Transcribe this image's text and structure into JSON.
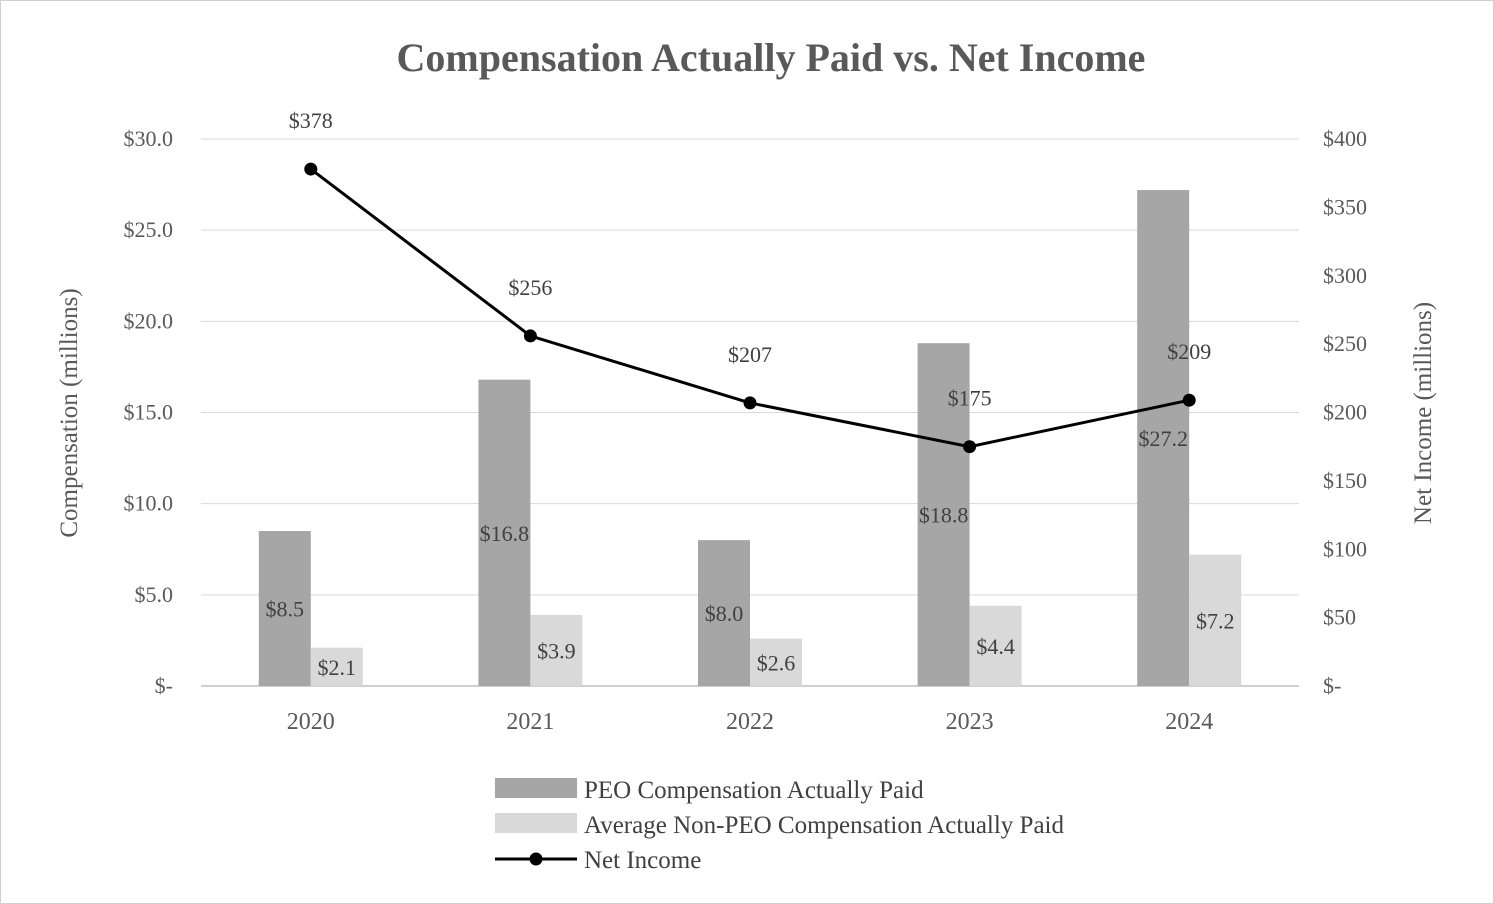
{
  "chart_data": {
    "type": "bar+line",
    "title": "Compensation Actually Paid vs. Net Income",
    "categories": [
      "2020",
      "2021",
      "2022",
      "2023",
      "2024"
    ],
    "ylabel_left": "Compensation (millions)",
    "ylabel_right": "Net Income (millions)",
    "ylim_left": [
      0,
      30
    ],
    "ylim_right": [
      0,
      400
    ],
    "yticks_left": [
      "$-",
      "$5.0",
      "$10.0",
      "$15.0",
      "$20.0",
      "$25.0",
      "$30.0"
    ],
    "yticks_right": [
      "$-",
      "$50",
      "$100",
      "$150",
      "$200",
      "$250",
      "$300",
      "$350",
      "$400"
    ],
    "grid": true,
    "legend_position": "bottom",
    "series": [
      {
        "name": "PEO Compensation Actually Paid",
        "type": "bar",
        "axis": "left",
        "color": "#a6a6a6",
        "values": [
          8.5,
          16.8,
          8.0,
          18.8,
          27.2
        ],
        "labels": [
          "$8.5",
          "$16.8",
          "$8.0",
          "$18.8",
          "$27.2"
        ]
      },
      {
        "name": "Average Non-PEO Compensation Actually Paid",
        "type": "bar",
        "axis": "left",
        "color": "#d9d9d9",
        "values": [
          2.1,
          3.9,
          2.6,
          4.4,
          7.2
        ],
        "labels": [
          "$2.1",
          "$3.9",
          "$2.6",
          "$4.4",
          "$7.2"
        ]
      },
      {
        "name": "Net Income",
        "type": "line",
        "axis": "right",
        "color": "#000000",
        "values": [
          378,
          256,
          207,
          175,
          209
        ],
        "labels": [
          "$378",
          "$256",
          "$207",
          "$175",
          "$209"
        ]
      }
    ]
  }
}
